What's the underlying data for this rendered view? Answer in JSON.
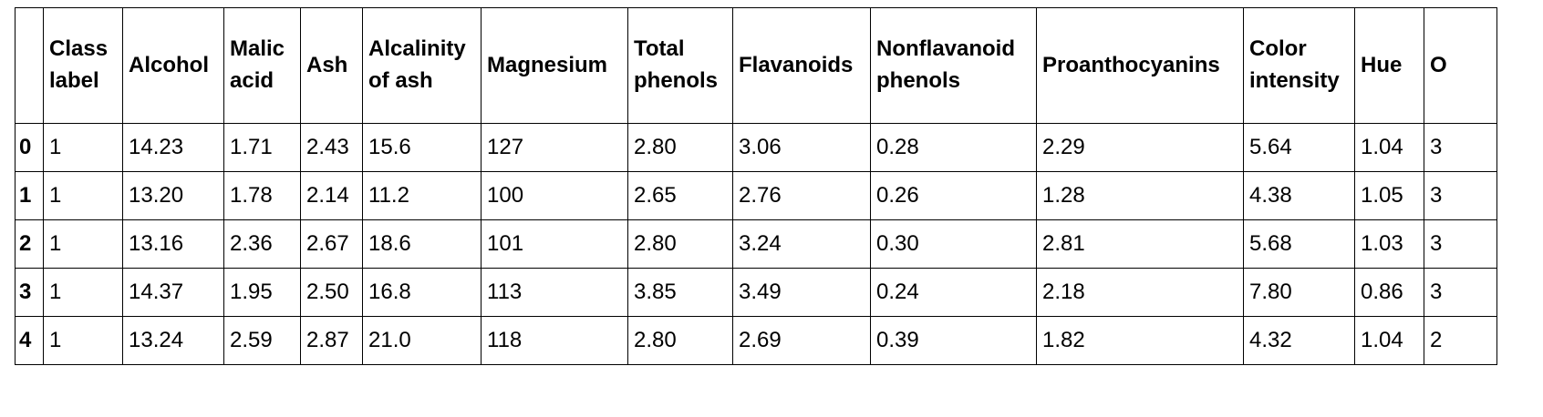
{
  "table": {
    "columns": [
      "",
      "Class label",
      "Alcohol",
      "Malic acid",
      "Ash",
      "Alcalinity of ash",
      "Magnesium",
      "Total phenols",
      "Flavanoids",
      "Nonflavanoid phenols",
      "Proanthocyanins",
      "Color intensity",
      "Hue",
      "O"
    ],
    "rows": [
      {
        "index": "0",
        "cells": [
          "1",
          "14.23",
          "1.71",
          "2.43",
          "15.6",
          "127",
          "2.80",
          "3.06",
          "0.28",
          "2.29",
          "5.64",
          "1.04",
          "3"
        ]
      },
      {
        "index": "1",
        "cells": [
          "1",
          "13.20",
          "1.78",
          "2.14",
          "11.2",
          "100",
          "2.65",
          "2.76",
          "0.26",
          "1.28",
          "4.38",
          "1.05",
          "3"
        ]
      },
      {
        "index": "2",
        "cells": [
          "1",
          "13.16",
          "2.36",
          "2.67",
          "18.6",
          "101",
          "2.80",
          "3.24",
          "0.30",
          "2.81",
          "5.68",
          "1.03",
          "3"
        ]
      },
      {
        "index": "3",
        "cells": [
          "1",
          "14.37",
          "1.95",
          "2.50",
          "16.8",
          "113",
          "3.85",
          "3.49",
          "0.24",
          "2.18",
          "7.80",
          "0.86",
          "3"
        ]
      },
      {
        "index": "4",
        "cells": [
          "1",
          "13.24",
          "2.59",
          "2.87",
          "21.0",
          "118",
          "2.80",
          "2.69",
          "0.39",
          "1.82",
          "4.32",
          "1.04",
          "2"
        ]
      }
    ]
  }
}
